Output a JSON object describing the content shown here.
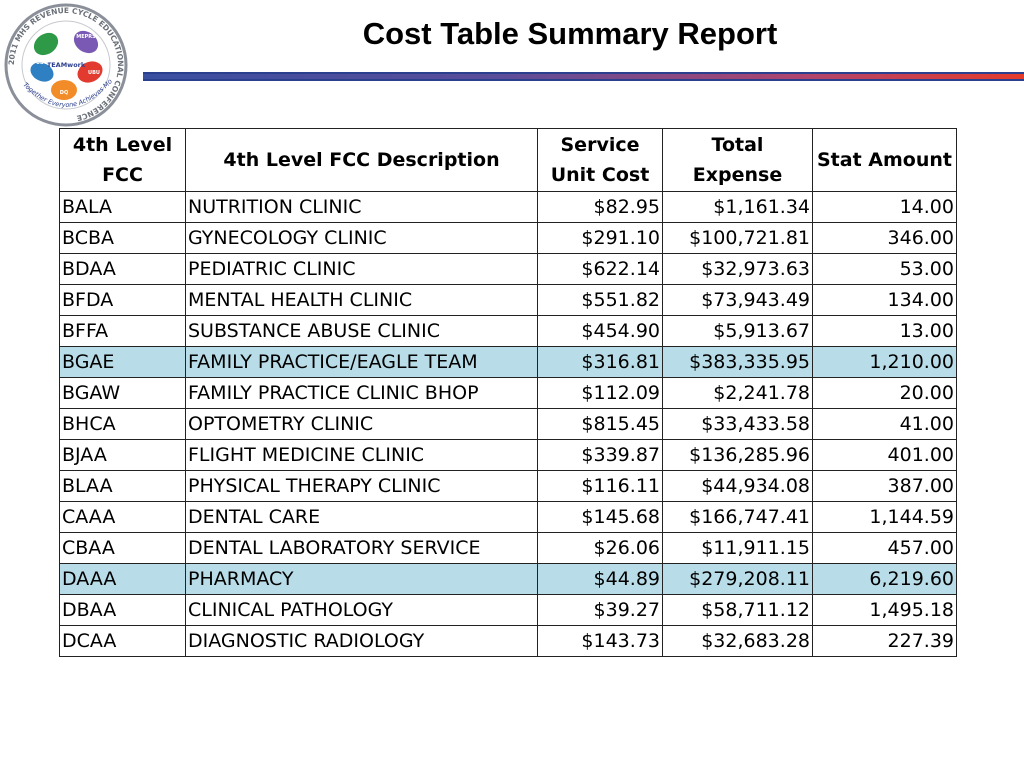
{
  "title": "Cost Table Summary Report",
  "logo": {
    "ring_text": "2011 MHS REVENUE CYCLE EDUCATIONAL CONFERENCE",
    "center_text": "TEAMwork",
    "tagline": "Together Everyone Achieves More",
    "hand_labels": [
      "MEPRS",
      "UBU",
      "UBO",
      "DQ"
    ]
  },
  "colors": {
    "highlight_row": "#b8dde8",
    "rule_start": "#3a4fa0",
    "rule_end": "#e53b2a"
  },
  "table": {
    "headers": [
      "4th Level FCC",
      "4th Level FCC Description",
      "Service Unit Cost",
      "Total Expense",
      "Stat Amount"
    ],
    "rows": [
      {
        "fcc": "BALA",
        "desc": "NUTRITION CLINIC",
        "unit_cost": "$82.95",
        "total": "$1,161.34",
        "stat": "14.00",
        "highlight": false
      },
      {
        "fcc": "BCBA",
        "desc": "GYNECOLOGY CLINIC",
        "unit_cost": "$291.10",
        "total": "$100,721.81",
        "stat": "346.00",
        "highlight": false
      },
      {
        "fcc": "BDAA",
        "desc": "PEDIATRIC CLINIC",
        "unit_cost": "$622.14",
        "total": "$32,973.63",
        "stat": "53.00",
        "highlight": false
      },
      {
        "fcc": "BFDA",
        "desc": "MENTAL HEALTH CLINIC",
        "unit_cost": "$551.82",
        "total": "$73,943.49",
        "stat": "134.00",
        "highlight": false
      },
      {
        "fcc": "BFFA",
        "desc": "SUBSTANCE ABUSE CLINIC",
        "unit_cost": "$454.90",
        "total": "$5,913.67",
        "stat": "13.00",
        "highlight": false
      },
      {
        "fcc": "BGAE",
        "desc": "FAMILY PRACTICE/EAGLE TEAM",
        "unit_cost": "$316.81",
        "total": "$383,335.95",
        "stat": "1,210.00",
        "highlight": true
      },
      {
        "fcc": "BGAW",
        "desc": "FAMILY PRACTICE CLINIC BHOP",
        "unit_cost": "$112.09",
        "total": "$2,241.78",
        "stat": "20.00",
        "highlight": false
      },
      {
        "fcc": "BHCA",
        "desc": "OPTOMETRY CLINIC",
        "unit_cost": "$815.45",
        "total": "$33,433.58",
        "stat": "41.00",
        "highlight": false
      },
      {
        "fcc": "BJAA",
        "desc": "FLIGHT MEDICINE CLINIC",
        "unit_cost": "$339.87",
        "total": "$136,285.96",
        "stat": "401.00",
        "highlight": false
      },
      {
        "fcc": "BLAA",
        "desc": "PHYSICAL THERAPY CLINIC",
        "unit_cost": "$116.11",
        "total": "$44,934.08",
        "stat": "387.00",
        "highlight": false
      },
      {
        "fcc": "CAAA",
        "desc": "DENTAL CARE",
        "unit_cost": "$145.68",
        "total": "$166,747.41",
        "stat": "1,144.59",
        "highlight": false
      },
      {
        "fcc": "CBAA",
        "desc": "DENTAL LABORATORY SERVICE",
        "unit_cost": "$26.06",
        "total": "$11,911.15",
        "stat": "457.00",
        "highlight": false
      },
      {
        "fcc": "DAAA",
        "desc": "PHARMACY",
        "unit_cost": "$44.89",
        "total": "$279,208.11",
        "stat": "6,219.60",
        "highlight": true
      },
      {
        "fcc": "DBAA",
        "desc": "CLINICAL PATHOLOGY",
        "unit_cost": "$39.27",
        "total": "$58,711.12",
        "stat": "1,495.18",
        "highlight": false
      },
      {
        "fcc": "DCAA",
        "desc": "DIAGNOSTIC RADIOLOGY",
        "unit_cost": "$143.73",
        "total": "$32,683.28",
        "stat": "227.39",
        "highlight": false
      }
    ]
  }
}
